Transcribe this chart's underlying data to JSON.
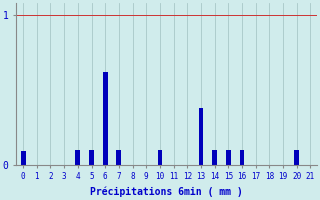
{
  "xlabel": "Précipitations 6min ( mm )",
  "xlim": [
    -0.5,
    21.5
  ],
  "ylim": [
    0,
    1.08
  ],
  "yticks": [
    0,
    1
  ],
  "ytick_labels": [
    "0",
    "1"
  ],
  "categories": [
    0,
    1,
    2,
    3,
    4,
    5,
    6,
    7,
    8,
    9,
    10,
    11,
    12,
    13,
    14,
    15,
    16,
    17,
    18,
    19,
    20,
    21
  ],
  "values": [
    0.09,
    0.0,
    0.0,
    0.0,
    0.1,
    0.1,
    0.62,
    0.1,
    0.0,
    0.0,
    0.1,
    0.0,
    0.0,
    0.38,
    0.1,
    0.1,
    0.1,
    0.0,
    0.0,
    0.0,
    0.1,
    0.0
  ],
  "bar_color": "#0000bb",
  "background_color": "#d0ecec",
  "grid_color": "#a8c8c8",
  "red_line_color": "#cc3333",
  "axis_color": "#888888",
  "text_color": "#0000cc",
  "bar_width": 0.35,
  "xlabel_fontsize": 7,
  "ytick_fontsize": 7,
  "xtick_fontsize": 5.5
}
